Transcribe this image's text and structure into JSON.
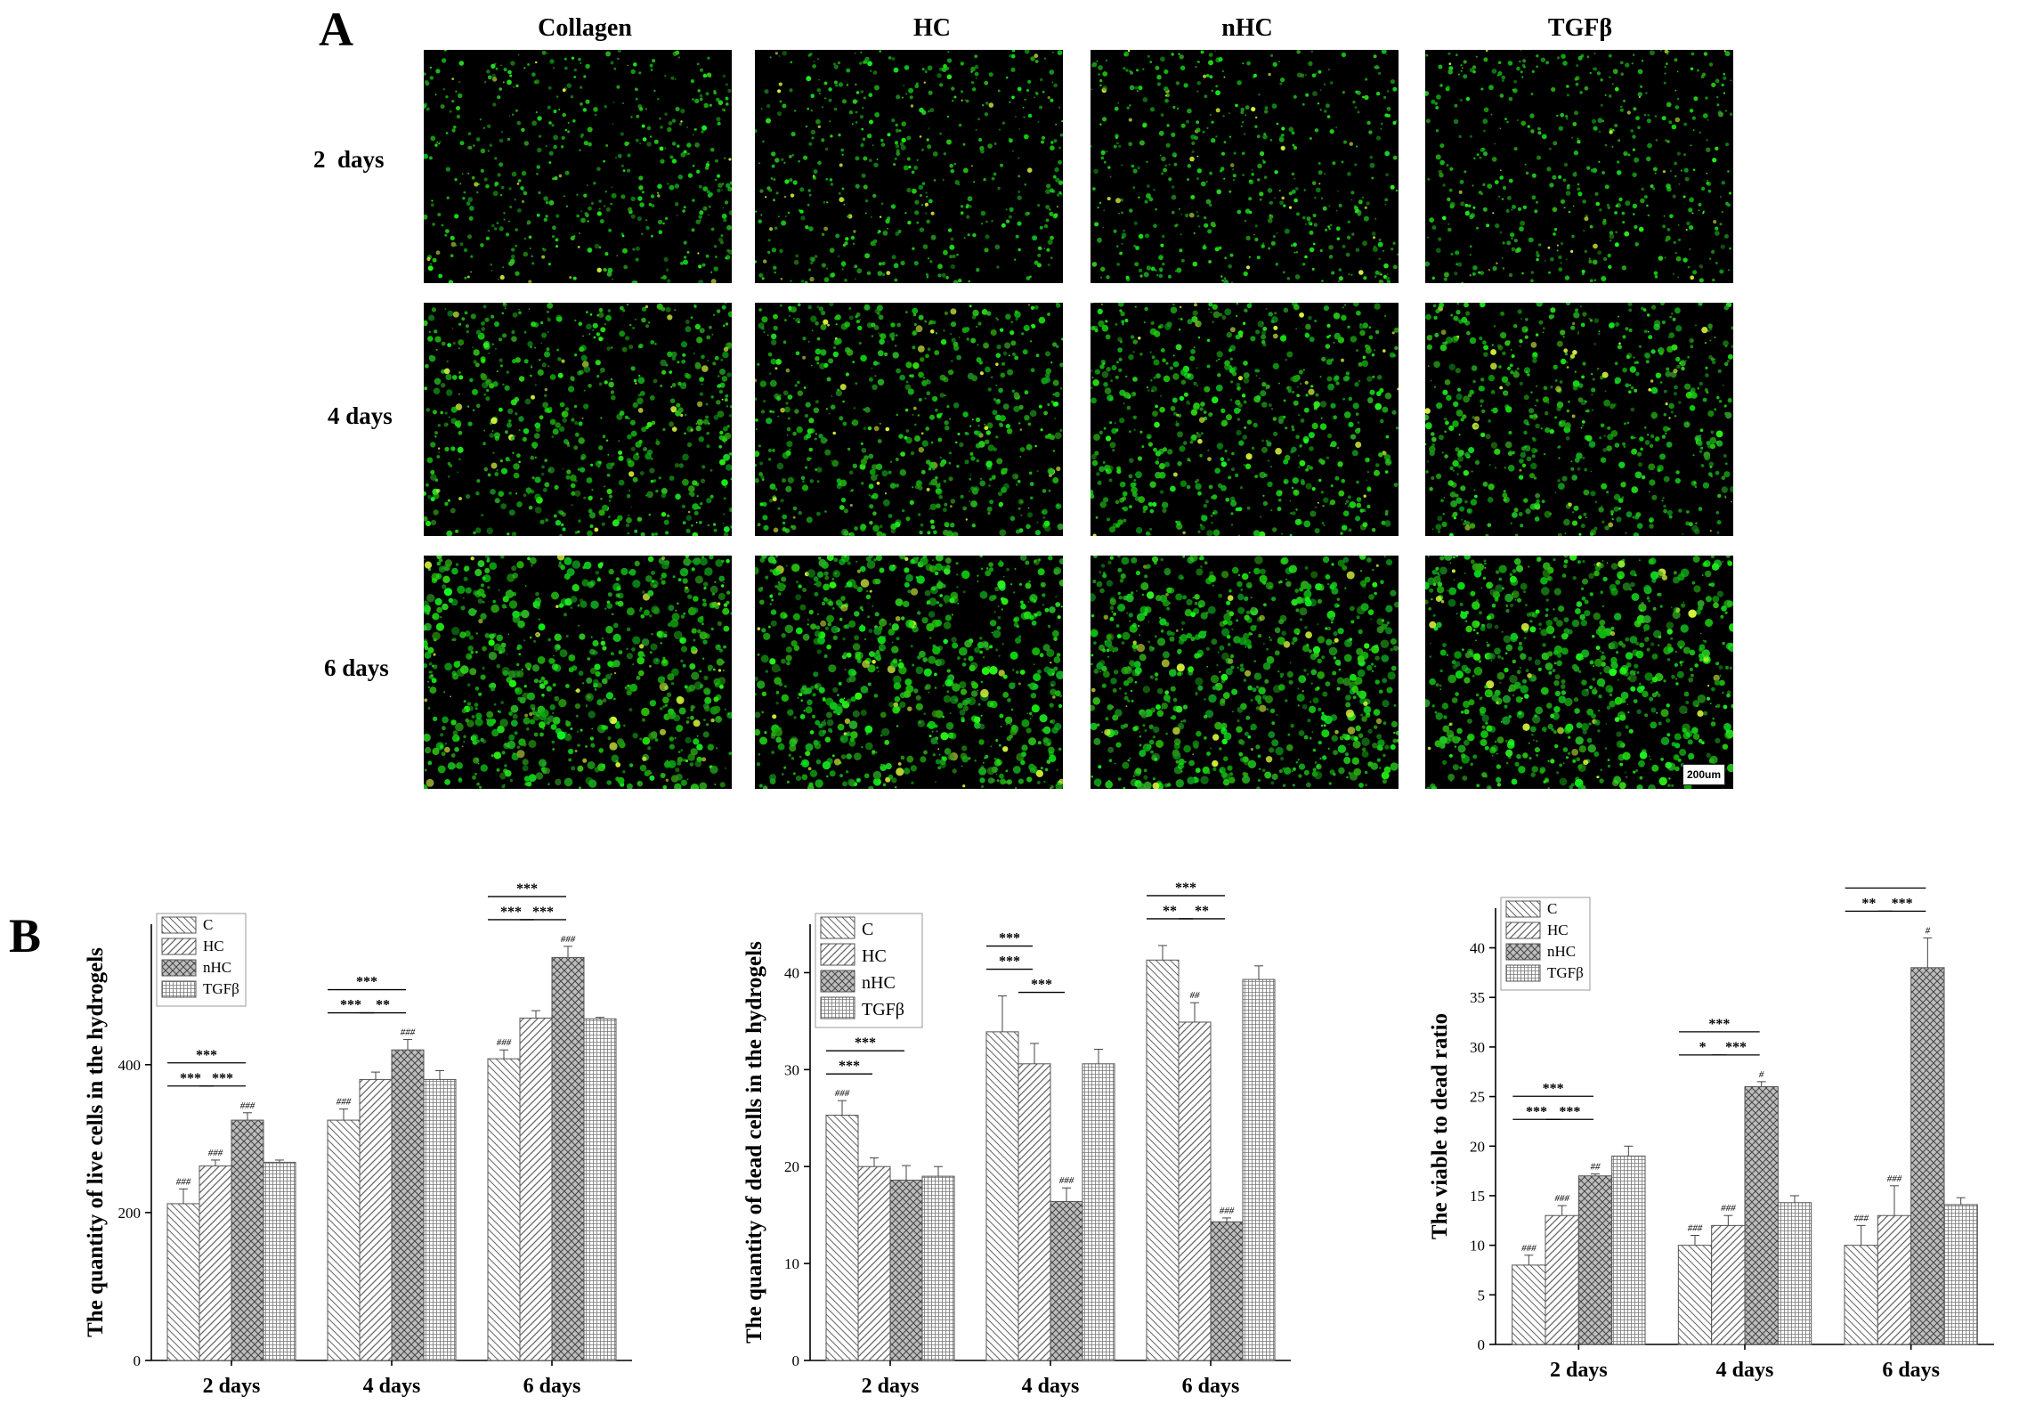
{
  "panel_a": {
    "label": "A",
    "columns": [
      "Collagen",
      "HC",
      "nHC",
      "TGFβ"
    ],
    "rows": [
      "2  days",
      "4 days",
      "6 days"
    ],
    "scale_bar": "200um",
    "image_color": "#2bd42b"
  },
  "panel_b": {
    "label": "B"
  },
  "chart_data": [
    {
      "type": "bar",
      "ylabel": "The quantity of live cells in the hydrogels",
      "xlabel": "",
      "categories": [
        "2 days",
        "4 days",
        "6 days"
      ],
      "ylim": [
        0,
        590
      ],
      "yticks": [
        0,
        200,
        400
      ],
      "legend_position": "top-left",
      "series": [
        {
          "name": "C",
          "values": [
            212,
            325,
            408
          ],
          "errors": [
            20,
            15,
            12
          ],
          "pattern": "diag-left",
          "sig": [
            "###",
            "###",
            "###"
          ]
        },
        {
          "name": "HC",
          "values": [
            263,
            380,
            463
          ],
          "errors": [
            8,
            10,
            10
          ],
          "pattern": "diag-right",
          "sig": [
            "###",
            "",
            ""
          ]
        },
        {
          "name": "nHC",
          "values": [
            325,
            420,
            545
          ],
          "errors": [
            10,
            14,
            15
          ],
          "pattern": "cross",
          "sig": [
            "###",
            "###",
            "###"
          ]
        },
        {
          "name": "TGFβ",
          "values": [
            268,
            380,
            462
          ],
          "errors": [
            3,
            12,
            2
          ],
          "pattern": "grid",
          "sig": [
            "",
            "",
            ""
          ]
        }
      ],
      "brackets": [
        {
          "group": 0,
          "from": 0,
          "to": 1,
          "label": "***",
          "level": 0
        },
        {
          "group": 0,
          "from": 1,
          "to": 2,
          "label": "***",
          "level": 0
        },
        {
          "group": 0,
          "from": 0,
          "to": 2,
          "label": "***",
          "level": 1
        },
        {
          "group": 1,
          "from": 0,
          "to": 1,
          "label": "***",
          "level": 0
        },
        {
          "group": 1,
          "from": 1,
          "to": 2,
          "label": "**",
          "level": 0
        },
        {
          "group": 1,
          "from": 0,
          "to": 2,
          "label": "***",
          "level": 1
        },
        {
          "group": 2,
          "from": 0,
          "to": 1,
          "label": "***",
          "level": 0
        },
        {
          "group": 2,
          "from": 1,
          "to": 2,
          "label": "***",
          "level": 0
        },
        {
          "group": 2,
          "from": 0,
          "to": 2,
          "label": "***",
          "level": 1
        }
      ]
    },
    {
      "type": "bar",
      "ylabel": "The quantity of dead cells in the hydrogels",
      "xlabel": "",
      "categories": [
        "2 days",
        "4 days",
        "6 days"
      ],
      "ylim": [
        0,
        45
      ],
      "yticks": [
        0,
        10,
        20,
        30,
        40
      ],
      "legend_position": "top-left",
      "series": [
        {
          "name": "C",
          "values": [
            25.3,
            33.9,
            41.3
          ],
          "errors": [
            1.5,
            3.7,
            1.5
          ],
          "pattern": "diag-left",
          "sig": [
            "###",
            "",
            ""
          ]
        },
        {
          "name": "HC",
          "values": [
            20.0,
            30.6,
            34.9
          ],
          "errors": [
            0.9,
            2.1,
            2.0
          ],
          "pattern": "diag-right",
          "sig": [
            "",
            "",
            "##"
          ]
        },
        {
          "name": "nHC",
          "values": [
            18.6,
            16.4,
            14.3
          ],
          "errors": [
            1.5,
            1.4,
            0.4
          ],
          "pattern": "cross",
          "sig": [
            "",
            "###",
            "###"
          ]
        },
        {
          "name": "TGFβ",
          "values": [
            19.0,
            30.6,
            39.3
          ],
          "errors": [
            1.0,
            1.5,
            1.4
          ],
          "pattern": "grid",
          "sig": [
            "",
            "",
            ""
          ]
        }
      ],
      "brackets": [
        {
          "group": 0,
          "from": 0,
          "to": 1,
          "label": "***",
          "level": 0
        },
        {
          "group": 0,
          "from": 0,
          "to": 2,
          "label": "***",
          "level": 1
        },
        {
          "group": 1,
          "from": 0,
          "to": 1,
          "label": "***",
          "level": 0
        },
        {
          "group": 1,
          "from": 0,
          "to": 1,
          "label": "***",
          "level": 1
        },
        {
          "group": 1,
          "from": 1,
          "to": 2,
          "label": "***",
          "level": -1
        },
        {
          "group": 2,
          "from": 0,
          "to": 1,
          "label": "**",
          "level": 0
        },
        {
          "group": 2,
          "from": 1,
          "to": 2,
          "label": "**",
          "level": 0
        },
        {
          "group": 2,
          "from": 0,
          "to": 2,
          "label": "***",
          "level": 1
        }
      ]
    },
    {
      "type": "bar",
      "ylabel": "The viable to dead ratio",
      "xlabel": "",
      "categories": [
        "2 days",
        "4 days",
        "6 days"
      ],
      "ylim": [
        0,
        44
      ],
      "yticks": [
        0,
        5,
        10,
        15,
        20,
        25,
        30,
        35,
        40
      ],
      "legend_position": "top-left",
      "series": [
        {
          "name": "C",
          "values": [
            8,
            10,
            10
          ],
          "errors": [
            1,
            1,
            2
          ],
          "pattern": "diag-left",
          "sig": [
            "###",
            "###",
            "###"
          ]
        },
        {
          "name": "HC",
          "values": [
            13,
            12,
            13
          ],
          "errors": [
            1,
            1,
            3
          ],
          "pattern": "diag-right",
          "sig": [
            "###",
            "###",
            "###"
          ]
        },
        {
          "name": "nHC",
          "values": [
            17,
            26,
            38
          ],
          "errors": [
            0.2,
            0.5,
            3
          ],
          "pattern": "cross",
          "sig": [
            "##",
            "#",
            "#"
          ]
        },
        {
          "name": "TGFβ",
          "values": [
            19,
            14.3,
            14.1
          ],
          "errors": [
            1,
            0.7,
            0.7
          ],
          "pattern": "grid",
          "sig": [
            "",
            "",
            ""
          ]
        }
      ],
      "brackets": [
        {
          "group": 0,
          "from": 0,
          "to": 1,
          "label": "***",
          "level": 0
        },
        {
          "group": 0,
          "from": 1,
          "to": 2,
          "label": "***",
          "level": 0
        },
        {
          "group": 0,
          "from": 0,
          "to": 2,
          "label": "***",
          "level": 1
        },
        {
          "group": 1,
          "from": 0,
          "to": 1,
          "label": "*",
          "level": 0
        },
        {
          "group": 1,
          "from": 1,
          "to": 2,
          "label": "***",
          "level": 0
        },
        {
          "group": 1,
          "from": 0,
          "to": 2,
          "label": "***",
          "level": 1
        },
        {
          "group": 2,
          "from": 0,
          "to": 1,
          "label": "**",
          "level": 0
        },
        {
          "group": 2,
          "from": 1,
          "to": 2,
          "label": "***",
          "level": 0
        },
        {
          "group": 2,
          "from": 0,
          "to": 2,
          "label": "***",
          "level": 1
        }
      ]
    }
  ]
}
